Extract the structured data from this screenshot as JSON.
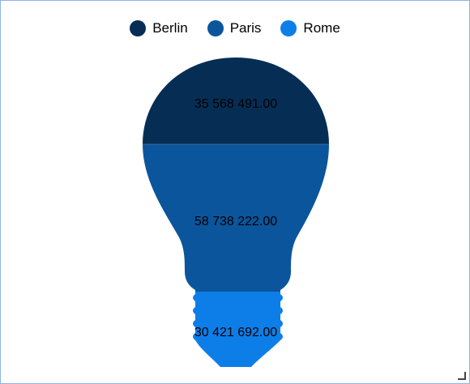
{
  "chart_data": {
    "type": "pictorial-bar",
    "shape": "light-bulb",
    "legend_position": "top-center",
    "series": [
      {
        "name": "Berlin",
        "value": 35568491.0,
        "label": "35 568 491.00",
        "color": "#062e55"
      },
      {
        "name": "Paris",
        "value": 58738222.0,
        "label": "58 738 222.00",
        "color": "#0b559c"
      },
      {
        "name": "Rome",
        "value": 30421692.0,
        "label": "30 421 692.00",
        "color": "#0d7ee8"
      }
    ]
  }
}
